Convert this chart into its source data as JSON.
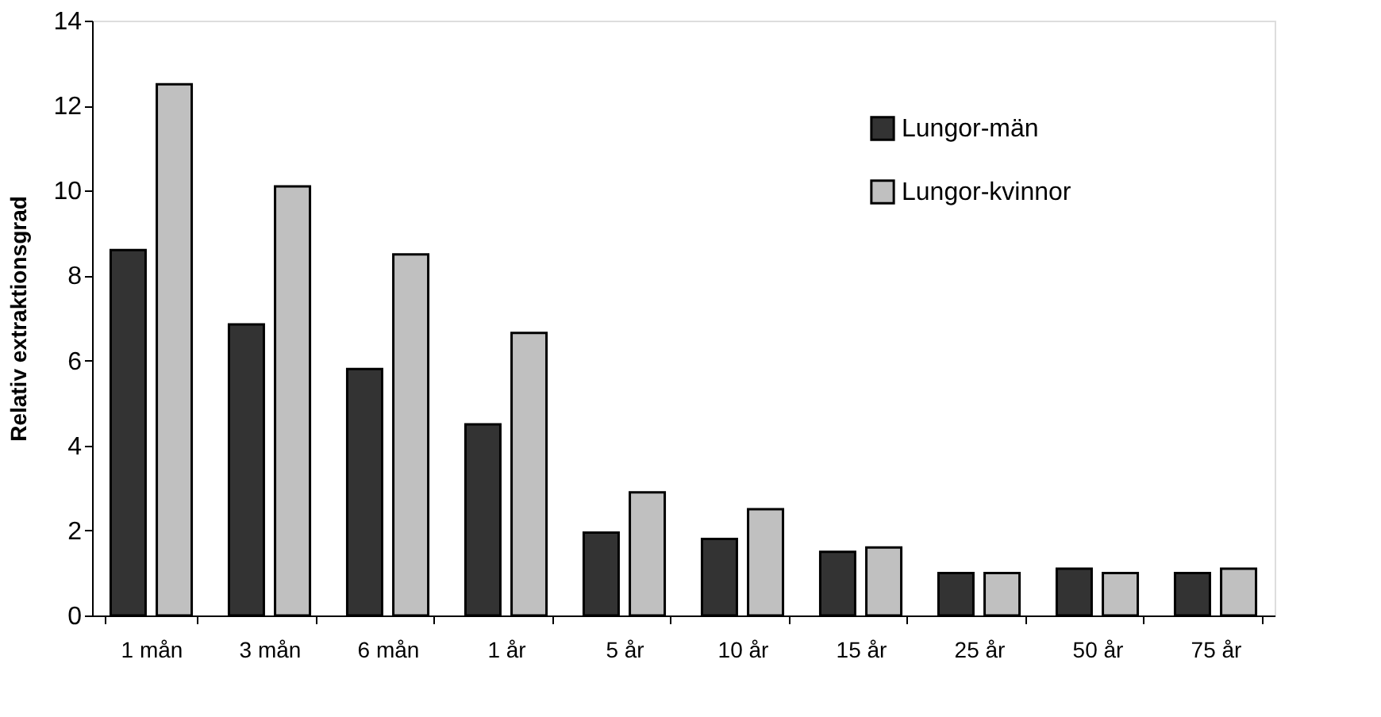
{
  "chart_data": {
    "type": "bar",
    "ylabel": "Relativ extraktionsgrad",
    "categories": [
      "1 mån",
      "3 mån",
      "6 mån",
      "1 år",
      "5 år",
      "10 år",
      "15 år",
      "25 år",
      "50 år",
      "75 år"
    ],
    "series": [
      {
        "name": "Lungor-män",
        "color": "#333333",
        "values": [
          8.6,
          6.85,
          5.8,
          4.5,
          1.95,
          1.8,
          1.5,
          1.0,
          1.1,
          1.0
        ]
      },
      {
        "name": "Lungor-kvinnor",
        "color": "#c0c0c0",
        "values": [
          12.5,
          10.1,
          8.5,
          6.65,
          2.9,
          2.5,
          1.6,
          1.0,
          1.0,
          1.1
        ]
      }
    ],
    "ylim": [
      0,
      14
    ],
    "yticks": [
      0,
      2,
      4,
      6,
      8,
      10,
      12,
      14
    ],
    "grid": false,
    "legend": "top right"
  }
}
